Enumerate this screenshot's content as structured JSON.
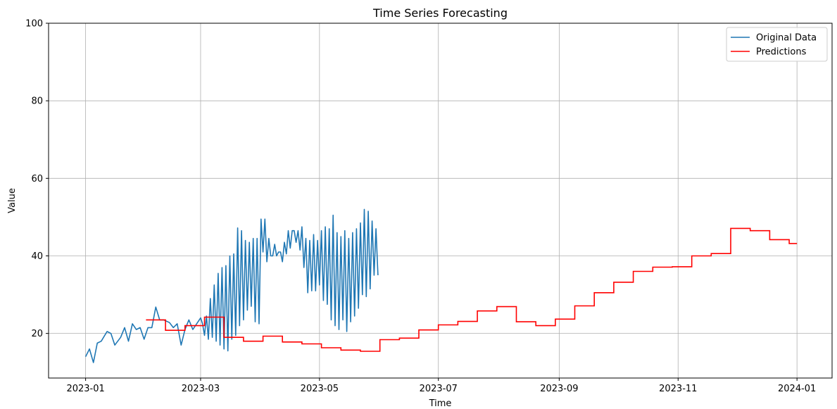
{
  "chart_data": {
    "type": "line",
    "title": "Time Series Forecasting",
    "xlabel": "Time",
    "ylabel": "Value",
    "xlim": [
      "2022-12-13",
      "2024-01-19"
    ],
    "ylim": [
      8.5,
      100
    ],
    "x_ticks": [
      "2023-01",
      "2023-03",
      "2023-05",
      "2023-07",
      "2023-09",
      "2023-11",
      "2024-01"
    ],
    "y_ticks": [
      20,
      40,
      60,
      80,
      100
    ],
    "grid": true,
    "legend_position": "upper right",
    "series": [
      {
        "name": "Original Data",
        "color": "#1f77b4",
        "points": [
          [
            "2023-01-01",
            14.0
          ],
          [
            "2023-01-03",
            16.0
          ],
          [
            "2023-01-05",
            12.5
          ],
          [
            "2023-01-07",
            17.5
          ],
          [
            "2023-01-09",
            18.0
          ],
          [
            "2023-01-12",
            20.5
          ],
          [
            "2023-01-14",
            20.0
          ],
          [
            "2023-01-16",
            17.0
          ],
          [
            "2023-01-19",
            19.0
          ],
          [
            "2023-01-21",
            21.5
          ],
          [
            "2023-01-23",
            18.0
          ],
          [
            "2023-01-25",
            22.5
          ],
          [
            "2023-01-27",
            21.0
          ],
          [
            "2023-01-29",
            21.5
          ],
          [
            "2023-01-31",
            18.5
          ],
          [
            "2023-02-02",
            21.5
          ],
          [
            "2023-02-04",
            21.5
          ],
          [
            "2023-02-06",
            26.8
          ],
          [
            "2023-02-08",
            23.5
          ],
          [
            "2023-02-10",
            23.5
          ],
          [
            "2023-02-13",
            22.8
          ],
          [
            "2023-02-15",
            21.5
          ],
          [
            "2023-02-17",
            22.5
          ],
          [
            "2023-02-19",
            17.0
          ],
          [
            "2023-02-21",
            21.0
          ],
          [
            "2023-02-23",
            23.5
          ],
          [
            "2023-02-25",
            21.0
          ],
          [
            "2023-02-27",
            22.5
          ],
          [
            "2023-03-01",
            24.0
          ],
          [
            "2023-03-03",
            19.5
          ],
          [
            "2023-03-05",
            18.5
          ],
          [
            "2023-03-07",
            19.0
          ],
          [
            "2023-03-09",
            18.0
          ],
          [
            "2023-03-11",
            17.0
          ],
          [
            "2023-03-13",
            16.0
          ],
          [
            "2023-03-15",
            15.5
          ],
          [
            "2023-03-17",
            18.5
          ],
          [
            "2023-03-19",
            19.5
          ],
          [
            "2023-03-21",
            22.0
          ],
          [
            "2023-03-23",
            23.5
          ],
          [
            "2023-03-25",
            26.0
          ],
          [
            "2023-03-27",
            27.0
          ],
          [
            "2023-03-29",
            23.0
          ],
          [
            "2023-03-31",
            22.5
          ],
          [
            "2023-03-02",
            22.5
          ],
          [
            "2023-03-04",
            24.5
          ],
          [
            "2023-03-06",
            29.0
          ],
          [
            "2023-03-08",
            32.5
          ],
          [
            "2023-03-10",
            35.5
          ],
          [
            "2023-03-12",
            37.0
          ],
          [
            "2023-03-14",
            37.5
          ],
          [
            "2023-03-16",
            40.0
          ],
          [
            "2023-03-18",
            40.5
          ],
          [
            "2023-03-20",
            47.2
          ],
          [
            "2023-03-22",
            46.5
          ],
          [
            "2023-03-24",
            44.0
          ],
          [
            "2023-03-26",
            43.5
          ],
          [
            "2023-03-28",
            44.5
          ],
          [
            "2023-03-30",
            44.5
          ],
          [
            "2023-04-01",
            49.5
          ],
          [
            "2023-04-03",
            49.5
          ],
          [
            "2023-04-05",
            44.5
          ],
          [
            "2023-04-07",
            40.0
          ],
          [
            "2023-04-09",
            40.0
          ],
          [
            "2023-04-11",
            41.0
          ],
          [
            "2023-04-13",
            43.5
          ],
          [
            "2023-04-15",
            46.5
          ],
          [
            "2023-04-17",
            46.5
          ],
          [
            "2023-04-19",
            43.5
          ],
          [
            "2023-04-21",
            41.5
          ],
          [
            "2023-04-23",
            37.0
          ],
          [
            "2023-04-25",
            30.5
          ],
          [
            "2023-04-27",
            31.0
          ],
          [
            "2023-04-29",
            31.0
          ],
          [
            "2023-05-01",
            32.5
          ],
          [
            "2023-05-03",
            28.5
          ],
          [
            "2023-05-05",
            27.5
          ],
          [
            "2023-05-07",
            23.5
          ],
          [
            "2023-05-09",
            22.0
          ],
          [
            "2023-05-11",
            21.0
          ],
          [
            "2023-05-13",
            23.5
          ],
          [
            "2023-05-15",
            20.5
          ],
          [
            "2023-05-17",
            23.0
          ],
          [
            "2023-05-19",
            24.5
          ],
          [
            "2023-05-21",
            26.5
          ],
          [
            "2023-05-23",
            30.0
          ],
          [
            "2023-05-25",
            29.5
          ],
          [
            "2023-05-27",
            31.5
          ],
          [
            "2023-05-29",
            35.0
          ],
          [
            "2023-05-31",
            35.0
          ],
          [
            "2023-04-02",
            41.0
          ],
          [
            "2023-04-04",
            38.5
          ],
          [
            "2023-04-06",
            40.0
          ],
          [
            "2023-04-08",
            43.0
          ],
          [
            "2023-04-10",
            41.0
          ],
          [
            "2023-04-12",
            38.5
          ],
          [
            "2023-04-14",
            40.5
          ],
          [
            "2023-04-16",
            42.0
          ],
          [
            "2023-04-18",
            46.5
          ],
          [
            "2023-04-20",
            46.5
          ],
          [
            "2023-04-22",
            47.5
          ],
          [
            "2023-04-24",
            44.5
          ],
          [
            "2023-04-26",
            44.0
          ],
          [
            "2023-04-28",
            45.5
          ],
          [
            "2023-04-30",
            44.0
          ],
          [
            "2023-05-02",
            46.5
          ],
          [
            "2023-05-04",
            47.5
          ],
          [
            "2023-05-06",
            47.0
          ],
          [
            "2023-05-08",
            50.5
          ],
          [
            "2023-05-10",
            46.0
          ],
          [
            "2023-05-12",
            45.0
          ],
          [
            "2023-05-14",
            46.5
          ],
          [
            "2023-05-16",
            44.5
          ],
          [
            "2023-05-18",
            46.0
          ],
          [
            "2023-05-20",
            47.0
          ],
          [
            "2023-05-22",
            48.5
          ],
          [
            "2023-05-24",
            52.0
          ],
          [
            "2023-05-26",
            51.5
          ],
          [
            "2023-05-28",
            49.0
          ],
          [
            "2023-05-30",
            47.0
          ]
        ]
      },
      {
        "name": "Predictions",
        "color": "#ff0000",
        "steps": [
          [
            "2023-02-01",
            23.5
          ],
          [
            "2023-02-11",
            20.8
          ],
          [
            "2023-02-21",
            22.0
          ],
          [
            "2023-03-03",
            24.2
          ],
          [
            "2023-03-13",
            19.0
          ],
          [
            "2023-03-23",
            18.0
          ],
          [
            "2023-04-02",
            19.3
          ],
          [
            "2023-04-12",
            17.8
          ],
          [
            "2023-04-22",
            17.3
          ],
          [
            "2023-05-02",
            16.3
          ],
          [
            "2023-05-12",
            15.7
          ],
          [
            "2023-05-22",
            15.4
          ],
          [
            "2023-06-01",
            18.4
          ],
          [
            "2023-06-11",
            18.8
          ],
          [
            "2023-06-21",
            20.9
          ],
          [
            "2023-07-01",
            22.2
          ],
          [
            "2023-07-11",
            23.1
          ],
          [
            "2023-07-21",
            25.8
          ],
          [
            "2023-07-31",
            26.9
          ],
          [
            "2023-08-10",
            23.0
          ],
          [
            "2023-08-20",
            22.0
          ],
          [
            "2023-08-30",
            23.7
          ],
          [
            "2023-09-09",
            27.1
          ],
          [
            "2023-09-19",
            30.5
          ],
          [
            "2023-09-29",
            33.2
          ],
          [
            "2023-10-09",
            36.0
          ],
          [
            "2023-10-19",
            37.1
          ],
          [
            "2023-10-29",
            37.2
          ],
          [
            "2023-11-08",
            40.0
          ],
          [
            "2023-11-18",
            40.6
          ],
          [
            "2023-11-28",
            47.1
          ],
          [
            "2023-12-08",
            46.5
          ],
          [
            "2023-12-18",
            44.2
          ],
          [
            "2023-12-28",
            43.2
          ]
        ],
        "end": "2024-01-01"
      }
    ]
  }
}
